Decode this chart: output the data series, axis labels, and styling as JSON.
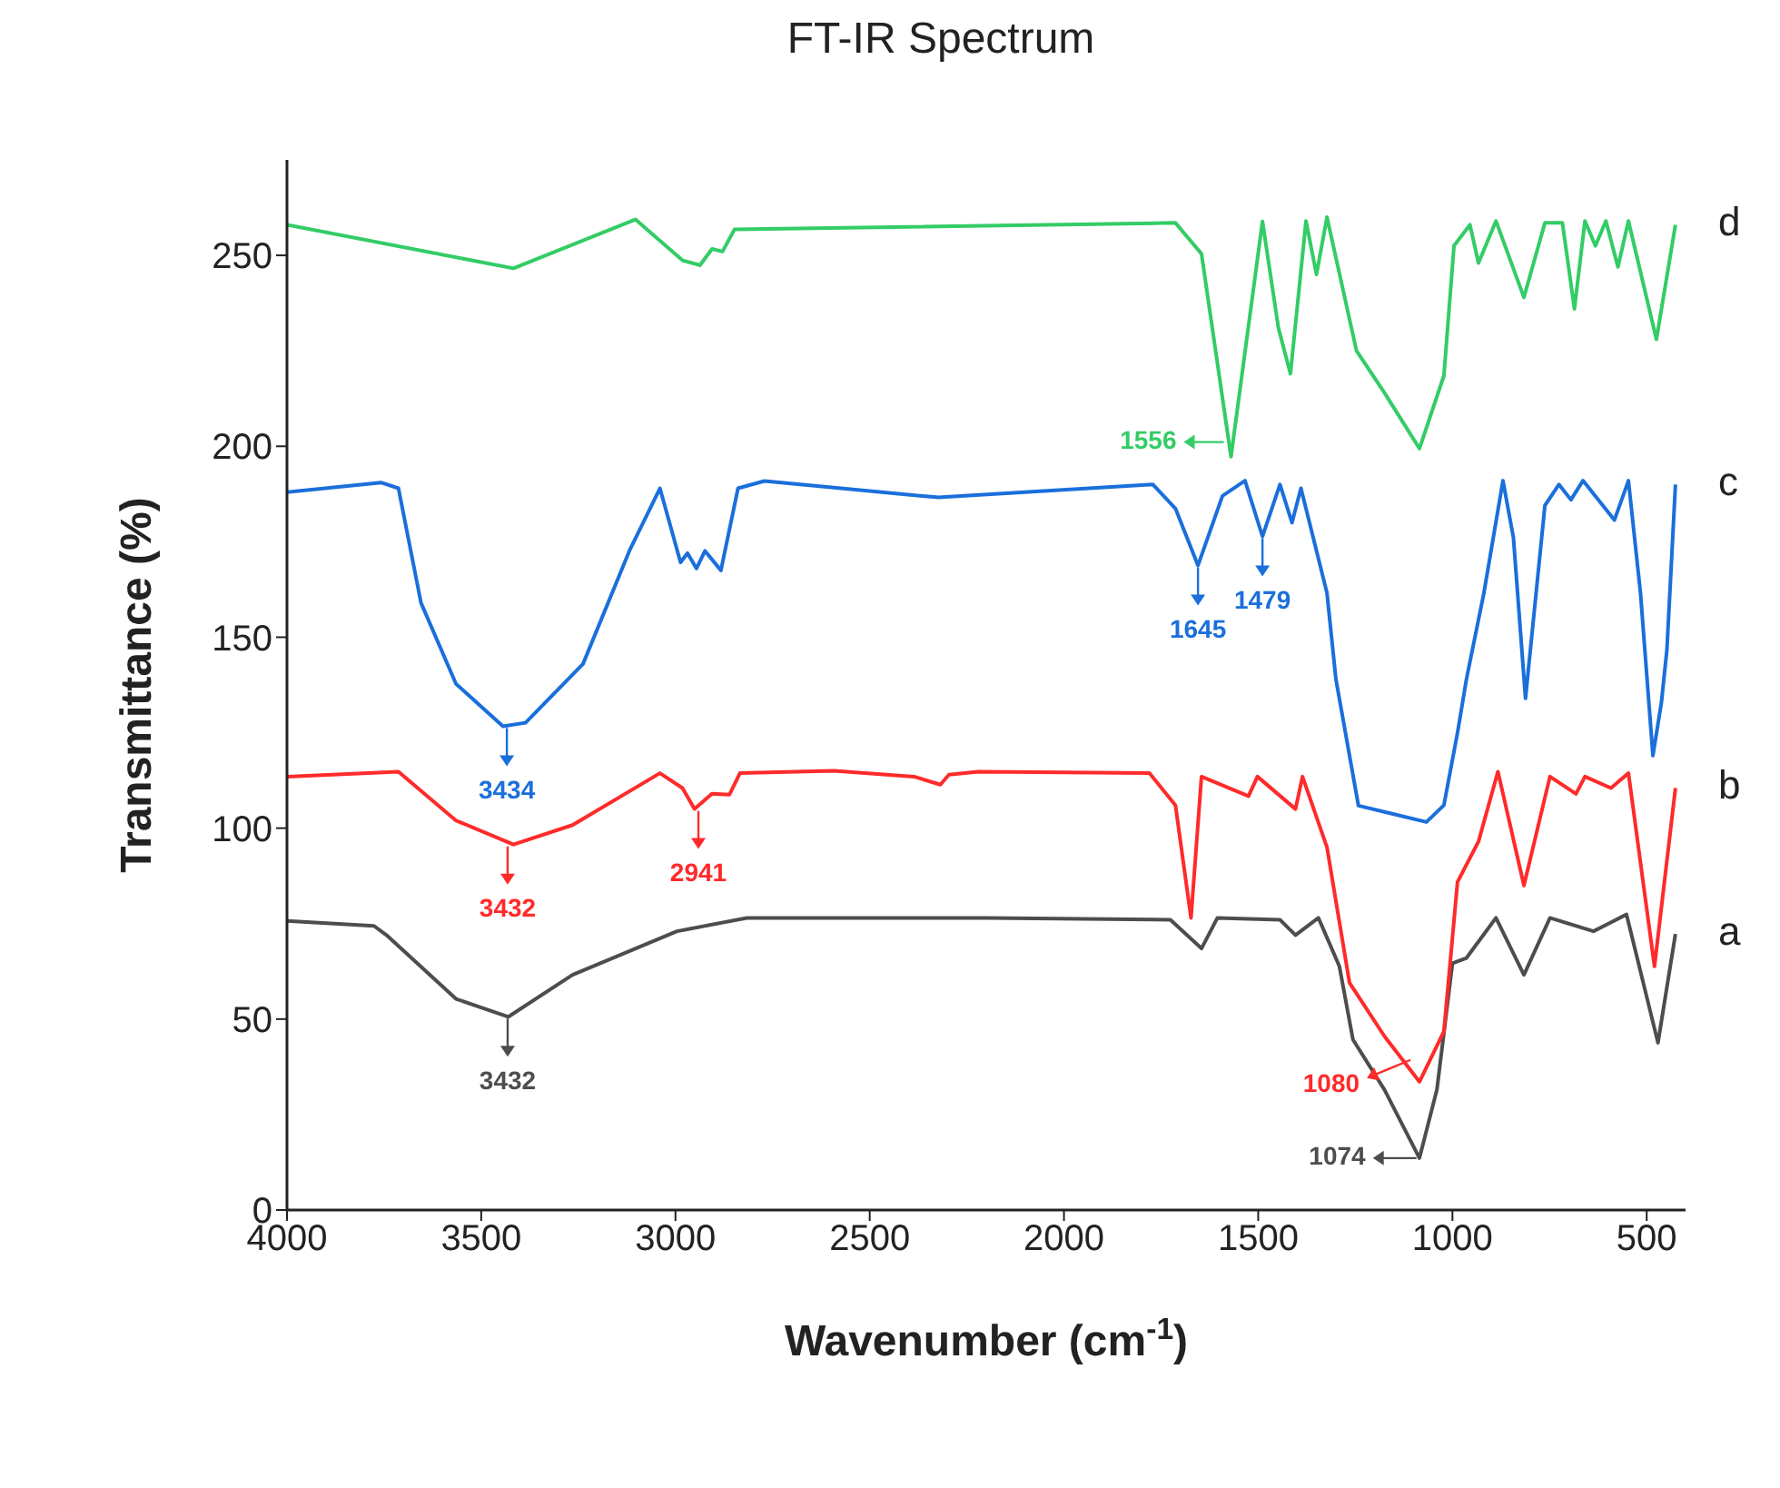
{
  "chart_data": {
    "type": "line",
    "title": "FT-IR Spectrum",
    "xlabel": "Wavenumber (cm$^{-1}$)",
    "ylabel": "Transmittance (%)",
    "xlim": [
      4000,
      400
    ],
    "xticks": [
      4000,
      3500,
      3000,
      2500,
      2000,
      1500,
      1000,
      500
    ],
    "ylim": [
      0,
      275
    ],
    "yticks": [
      0,
      50,
      100,
      150,
      200,
      250
    ],
    "marker": "none",
    "line_style": "solid",
    "series": [
      {
        "name": "a",
        "color": "#4d4d4d",
        "x": [
          4000,
          3776,
          3744,
          3565,
          3430,
          3265,
          2996,
          2816,
          2200,
          1726,
          1646,
          1605,
          1444,
          1404,
          1345,
          1291,
          1256,
          1175,
          1085,
          1040,
          1000,
          964,
          888,
          816,
          749,
          637,
          552,
          471,
          426
        ],
        "values": [
          75.7,
          74.4,
          72,
          55.3,
          50.6,
          61.6,
          73,
          76.5,
          76.5,
          76,
          68.5,
          76.5,
          76,
          72,
          76.5,
          63.8,
          44.6,
          31.5,
          13.6,
          31.5,
          64.6,
          66,
          76.5,
          61.6,
          76.5,
          73,
          77.4,
          43.8,
          72.3
        ]
      },
      {
        "name": "b",
        "color": "#ff2a2a",
        "x": [
          4000,
          3713,
          3565,
          3417,
          3265,
          3040,
          2982,
          2951,
          2906,
          2861,
          2834,
          2592,
          2386,
          2318,
          2296,
          2220,
          1780,
          1713,
          1673,
          1646,
          1525,
          1502,
          1404,
          1386,
          1323,
          1265,
          1175,
          1085,
          1022,
          987,
          933,
          883,
          816,
          749,
          682,
          659,
          592,
          547,
          480,
          426
        ],
        "values": [
          113.5,
          114.8,
          102,
          95.7,
          100.8,
          114.4,
          110.5,
          105,
          109,
          108.8,
          114.4,
          115,
          113.5,
          111.4,
          114,
          114.8,
          114.4,
          106,
          76.5,
          113.5,
          108.4,
          113.5,
          105,
          113.5,
          95,
          59.5,
          45.5,
          33.6,
          46.8,
          85.9,
          96.5,
          114.8,
          85,
          113.5,
          109,
          113.5,
          110.5,
          114.4,
          63.8,
          110.5
        ]
      },
      {
        "name": "c",
        "color": "#1a6fdb",
        "x": [
          4000,
          3758,
          3713,
          3655,
          3565,
          3444,
          3386,
          3238,
          3117,
          3040,
          2987,
          2969,
          2946,
          2924,
          2883,
          2839,
          2771,
          2323,
          1771,
          1713,
          1655,
          1592,
          1534,
          1489,
          1444,
          1413,
          1390,
          1323,
          1300,
          1242,
          1067,
          1022,
          987,
          964,
          919,
          870,
          843,
          812,
          762,
          726,
          695,
          664,
          583,
          547,
          516,
          484,
          462,
          448,
          426
        ],
        "values": [
          188,
          190.5,
          189,
          159,
          137.8,
          126.7,
          127.6,
          143,
          173,
          189,
          169.6,
          172,
          168,
          172.6,
          167.5,
          189,
          190.9,
          186.6,
          190,
          183.7,
          168.8,
          187,
          191,
          176.4,
          190,
          180,
          189,
          161.6,
          139,
          105.9,
          101.6,
          106,
          125,
          139,
          161.6,
          191,
          176,
          134,
          184.5,
          190,
          186,
          191,
          180.7,
          191,
          161.6,
          119,
          133,
          146.7,
          190
        ]
      },
      {
        "name": "d",
        "color": "#33cc66",
        "x": [
          4000,
          3417,
          3103,
          2982,
          2937,
          2906,
          2879,
          2848,
          1713,
          1646,
          1570,
          1489,
          1448,
          1417,
          1377,
          1350,
          1323,
          1247,
          1175,
          1085,
          1022,
          996,
          955,
          933,
          888,
          816,
          762,
          717,
          686,
          659,
          632,
          605,
          574,
          547,
          475,
          426
        ],
        "values": [
          258,
          246.6,
          259.4,
          248.7,
          247.4,
          251.7,
          251,
          256.8,
          258.5,
          250.4,
          197.3,
          258.9,
          231,
          219,
          259,
          245,
          260,
          225,
          214,
          199.4,
          218.5,
          252.5,
          258,
          248,
          259,
          239,
          258.5,
          258.5,
          236,
          259,
          252.5,
          259,
          247,
          259,
          228,
          258
        ]
      }
    ],
    "annotations": [
      {
        "text": "1556",
        "x": 1570,
        "y": 197.3
      },
      {
        "text": "1645",
        "x": 1655,
        "y": 168.8
      },
      {
        "text": "1479",
        "x": 1489,
        "y": 176.4
      },
      {
        "text": "3434",
        "x": 3434,
        "y": 126.7
      },
      {
        "text": "3432",
        "x": 3432,
        "y": 95.7
      },
      {
        "text": "2941",
        "x": 2941,
        "y": 105
      },
      {
        "text": "3432",
        "x": 3432,
        "y": 50.6
      },
      {
        "text": "1080",
        "x": 1080,
        "y": 33.6
      },
      {
        "text": "1074",
        "x": 1074,
        "y": 13.6
      }
    ]
  }
}
